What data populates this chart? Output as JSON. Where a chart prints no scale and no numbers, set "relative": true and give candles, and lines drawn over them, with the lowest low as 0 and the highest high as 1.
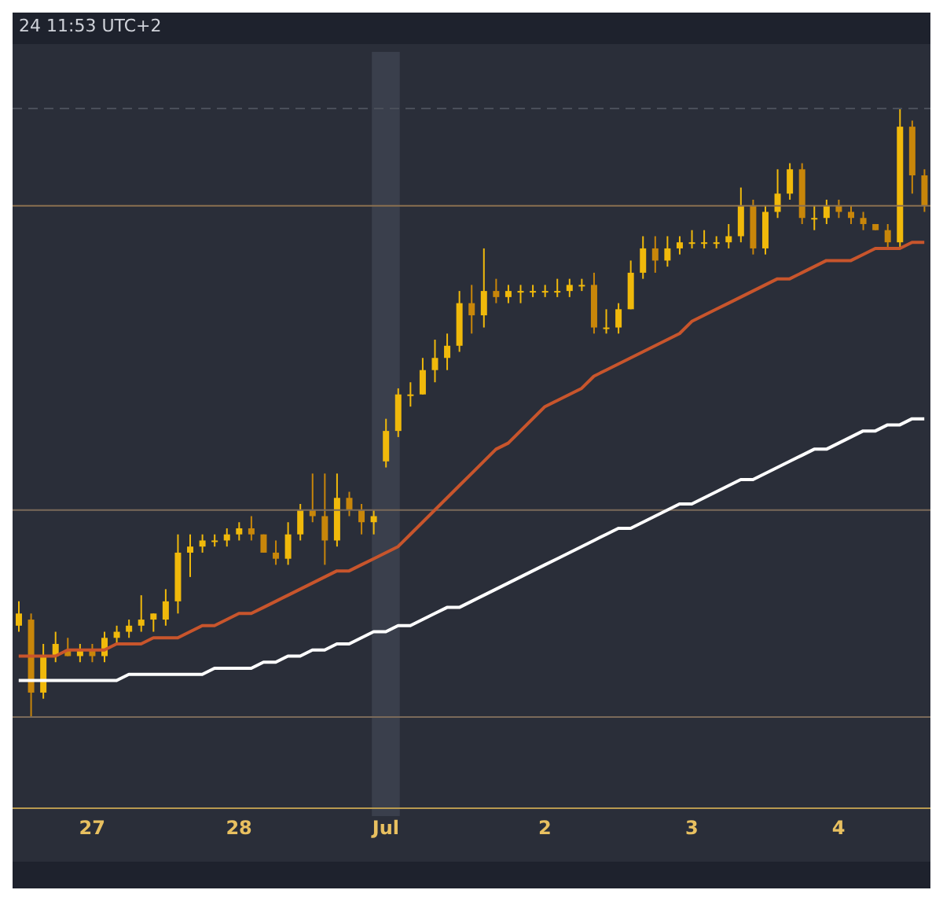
{
  "chart_data": {
    "type": "candlestick",
    "relative": true,
    "colors": [
      "#f0b90b",
      "#c8860a",
      "#f0b90b",
      "#f0b90b",
      "#c8860a",
      "#f0b90b",
      "#c8860a",
      "#f0b90b",
      "#f0b90b",
      "#f0b90b",
      "#f0b90b",
      "#f0b90b",
      "#f0b90b",
      "#f0b90b",
      "#f0b90b",
      "#f0b90b",
      "#f0b90b",
      "#f0b90b",
      "#f0b90b",
      "#c8860a",
      "#c8860a",
      "#c8860a",
      "#f0b90b",
      "#f0b90b",
      "#c8860a",
      "#c8860a",
      "#f0b90b",
      "#c8860a",
      "#c8860a",
      "#f0b90b",
      "#f0b90b",
      "#f0b90b",
      "#f0b90b",
      "#f0b90b",
      "#f0b90b",
      "#f0b90b",
      "#f0b90b",
      "#c8860a",
      "#f0b90b",
      "#c8860a",
      "#f0b90b",
      "#f0b90b",
      "#f0b90b",
      "#f0b90b",
      "#f0b90b",
      "#f0b90b",
      "#f0b90b",
      "#c8860a",
      "#f0b90b",
      "#f0b90b",
      "#f0b90b",
      "#f0b90b",
      "#c8860a",
      "#f0b90b",
      "#f0b90b",
      "#f0b90b",
      "#f0b90b",
      "#f0b90b",
      "#f0b90b",
      "#f0b90b",
      "#c8860a",
      "#f0b90b",
      "#f0b90b",
      "#f0b90b",
      "#c8860a",
      "#f0b90b",
      "#f0b90b",
      "#c8860a",
      "#c8860a",
      "#c8860a",
      "#c8860a",
      "#c8860a",
      "#f0b90b",
      "#c8860a",
      "#c8860a"
    ],
    "annotations": [
      "24 11:53 UTC+2"
    ],
    "categories": [
      null,
      null,
      null,
      null,
      null,
      null,
      "27",
      null,
      null,
      null,
      null,
      null,
      null,
      null,
      null,
      null,
      null,
      null,
      "28",
      null,
      null,
      null,
      null,
      null,
      null,
      null,
      null,
      null,
      null,
      null,
      "Jul",
      null,
      null,
      null,
      null,
      null,
      null,
      null,
      null,
      null,
      null,
      null,
      null,
      "2",
      null,
      null,
      null,
      null,
      null,
      null,
      null,
      null,
      null,
      null,
      null,
      "3",
      null,
      null,
      null,
      null,
      null,
      null,
      null,
      null,
      null,
      null,
      null,
      "4",
      null,
      null,
      null,
      null,
      null,
      null,
      null
    ],
    "ohlc": [
      [
        0.15,
        0.19,
        0.14,
        0.17
      ],
      [
        0.16,
        0.17,
        0,
        0.04
      ],
      [
        0.04,
        0.12,
        0.03,
        0.1
      ],
      [
        0.1,
        0.14,
        0.09,
        0.12
      ],
      [
        0.11,
        0.13,
        0.1,
        0.1
      ],
      [
        0.1,
        0.12,
        0.09,
        0.11
      ],
      [
        0.11,
        0.12,
        0.09,
        0.1
      ],
      [
        0.1,
        0.14,
        0.09,
        0.13
      ],
      [
        0.13,
        0.15,
        0.12,
        0.14
      ],
      [
        0.14,
        0.16,
        0.13,
        0.15
      ],
      [
        0.15,
        0.2,
        0.14,
        0.16
      ],
      [
        0.16,
        0.17,
        0.14,
        0.17
      ],
      [
        0.16,
        0.21,
        0.15,
        0.19
      ],
      [
        0.19,
        0.3,
        0.17,
        0.27
      ],
      [
        0.27,
        0.3,
        0.23,
        0.28
      ],
      [
        0.28,
        0.3,
        0.27,
        0.29
      ],
      [
        0.29,
        0.3,
        0.28,
        0.29
      ],
      [
        0.29,
        0.31,
        0.28,
        0.3
      ],
      [
        0.3,
        0.32,
        0.29,
        0.31
      ],
      [
        0.31,
        0.33,
        0.29,
        0.3
      ],
      [
        0.3,
        0.3,
        0.27,
        0.27
      ],
      [
        0.27,
        0.29,
        0.25,
        0.26
      ],
      [
        0.26,
        0.32,
        0.25,
        0.3
      ],
      [
        0.3,
        0.35,
        0.29,
        0.34
      ],
      [
        0.34,
        0.4,
        0.32,
        0.33
      ],
      [
        0.33,
        0.4,
        0.25,
        0.29
      ],
      [
        0.29,
        0.4,
        0.28,
        0.36
      ],
      [
        0.36,
        0.37,
        0.33,
        0.34
      ],
      [
        0.34,
        0.35,
        0.3,
        0.32
      ],
      [
        0.32,
        0.34,
        0.3,
        0.33
      ],
      [
        0.42,
        0.49,
        0.41,
        0.47
      ],
      [
        0.47,
        0.54,
        0.46,
        0.53
      ],
      [
        0.53,
        0.55,
        0.51,
        0.53
      ],
      [
        0.53,
        0.59,
        0.53,
        0.57
      ],
      [
        0.57,
        0.62,
        0.55,
        0.59
      ],
      [
        0.59,
        0.63,
        0.57,
        0.61
      ],
      [
        0.61,
        0.7,
        0.6,
        0.68
      ],
      [
        0.68,
        0.71,
        0.63,
        0.66
      ],
      [
        0.66,
        0.77,
        0.64,
        0.7
      ],
      [
        0.7,
        0.72,
        0.68,
        0.69
      ],
      [
        0.69,
        0.71,
        0.68,
        0.7
      ],
      [
        0.7,
        0.71,
        0.68,
        0.7
      ],
      [
        0.7,
        0.71,
        0.69,
        0.7
      ],
      [
        0.7,
        0.71,
        0.69,
        0.7
      ],
      [
        0.7,
        0.72,
        0.69,
        0.7
      ],
      [
        0.7,
        0.72,
        0.69,
        0.71
      ],
      [
        0.71,
        0.72,
        0.7,
        0.71
      ],
      [
        0.71,
        0.73,
        0.63,
        0.64
      ],
      [
        0.64,
        0.67,
        0.63,
        0.64
      ],
      [
        0.64,
        0.68,
        0.63,
        0.67
      ],
      [
        0.67,
        0.75,
        0.67,
        0.73
      ],
      [
        0.73,
        0.79,
        0.72,
        0.77
      ],
      [
        0.77,
        0.79,
        0.73,
        0.75
      ],
      [
        0.75,
        0.79,
        0.74,
        0.77
      ],
      [
        0.77,
        0.79,
        0.76,
        0.78
      ],
      [
        0.78,
        0.8,
        0.77,
        0.78
      ],
      [
        0.78,
        0.8,
        0.77,
        0.78
      ],
      [
        0.78,
        0.79,
        0.77,
        0.78
      ],
      [
        0.78,
        0.81,
        0.77,
        0.79
      ],
      [
        0.79,
        0.87,
        0.78,
        0.84
      ],
      [
        0.84,
        0.85,
        0.76,
        0.77
      ],
      [
        0.77,
        0.84,
        0.76,
        0.83
      ],
      [
        0.83,
        0.9,
        0.82,
        0.86
      ],
      [
        0.86,
        0.91,
        0.85,
        0.9
      ],
      [
        0.9,
        0.91,
        0.81,
        0.82
      ],
      [
        0.82,
        0.84,
        0.8,
        0.82
      ],
      [
        0.82,
        0.85,
        0.81,
        0.84
      ],
      [
        0.84,
        0.85,
        0.82,
        0.83
      ],
      [
        0.83,
        0.84,
        0.81,
        0.82
      ],
      [
        0.82,
        0.83,
        0.8,
        0.81
      ],
      [
        0.81,
        0.81,
        0.8,
        0.8
      ],
      [
        0.8,
        0.81,
        0.77,
        0.78
      ],
      [
        0.78,
        1.0,
        0.77,
        0.97
      ],
      [
        0.97,
        0.98,
        0.86,
        0.89
      ],
      [
        0.89,
        0.9,
        0.83,
        0.84
      ]
    ],
    "series": [
      {
        "type": "line",
        "color": "#c8552c",
        "values": [
          0.1,
          0.1,
          0.1,
          0.1,
          0.11,
          0.11,
          0.11,
          0.11,
          0.12,
          0.12,
          0.12,
          0.13,
          0.13,
          0.13,
          0.14,
          0.15,
          0.15,
          0.16,
          0.17,
          0.17,
          0.18,
          0.19,
          0.2,
          0.21,
          0.22,
          0.23,
          0.24,
          0.24,
          0.25,
          0.26,
          0.27,
          0.28,
          0.3,
          0.32,
          0.34,
          0.36,
          0.38,
          0.4,
          0.42,
          0.44,
          0.45,
          0.47,
          0.49,
          0.51,
          0.52,
          0.53,
          0.54,
          0.56,
          0.57,
          0.58,
          0.59,
          0.6,
          0.61,
          0.62,
          0.63,
          0.65,
          0.66,
          0.67,
          0.68,
          0.69,
          0.7,
          0.71,
          0.72,
          0.72,
          0.73,
          0.74,
          0.75,
          0.75,
          0.75,
          0.76,
          0.77,
          0.77,
          0.77,
          0.78,
          0.78
        ]
      },
      {
        "type": "line",
        "color": "#ffffff",
        "values": [
          0.06,
          0.06,
          0.06,
          0.06,
          0.06,
          0.06,
          0.06,
          0.06,
          0.06,
          0.07,
          0.07,
          0.07,
          0.07,
          0.07,
          0.07,
          0.07,
          0.08,
          0.08,
          0.08,
          0.08,
          0.09,
          0.09,
          0.1,
          0.1,
          0.11,
          0.11,
          0.12,
          0.12,
          0.13,
          0.14,
          0.14,
          0.15,
          0.15,
          0.16,
          0.17,
          0.18,
          0.18,
          0.19,
          0.2,
          0.21,
          0.22,
          0.23,
          0.24,
          0.25,
          0.26,
          0.27,
          0.28,
          0.29,
          0.3,
          0.31,
          0.31,
          0.32,
          0.33,
          0.34,
          0.35,
          0.35,
          0.36,
          0.37,
          0.38,
          0.39,
          0.39,
          0.4,
          0.41,
          0.42,
          0.43,
          0.44,
          0.44,
          0.45,
          0.46,
          0.47,
          0.47,
          0.48,
          0.48,
          0.49,
          0.49
        ]
      }
    ],
    "ref_lines": [
      {
        "axis": "y",
        "value": 1.0,
        "color": "#4a4f5a",
        "line_style": "dashed"
      },
      {
        "axis": "y",
        "value": 0.84,
        "color": "#8a7050"
      },
      {
        "axis": "y",
        "value": 0.34,
        "color": "#7a6a5a"
      },
      {
        "axis": "y",
        "value": 0,
        "color": "#7a6a5a"
      }
    ],
    "bands": [
      {
        "axis": "x",
        "from": "Jul",
        "to": "Jul",
        "color": "#3a3f4c"
      }
    ]
  }
}
